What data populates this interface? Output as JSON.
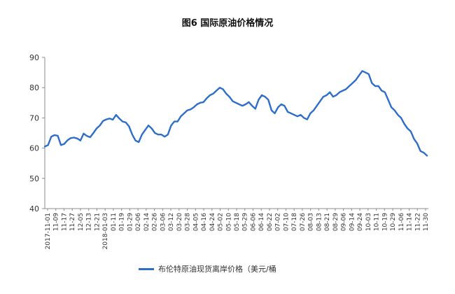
{
  "chart_data": {
    "type": "line",
    "title": "图6  国际原油价格情况",
    "xlabel": "",
    "ylabel": "",
    "ylim": [
      40,
      90
    ],
    "yticks": [
      40,
      50,
      60,
      70,
      80,
      90
    ],
    "grid": false,
    "legend_position": "bottom",
    "line_color": "#2e6ec8",
    "x_tick_labels": [
      "2017-11-01",
      "11-09",
      "11-17",
      "11-27",
      "12-05",
      "12-13",
      "12-21",
      "2018-01-03",
      "01-11",
      "01-19",
      "01-29",
      "02-06",
      "02-14",
      "02-26",
      "03-06",
      "03-12",
      "03-20",
      "03-28",
      "04-05",
      "04-16",
      "04-24",
      "05-02",
      "05-10",
      "05-18",
      "05-29",
      "06-06",
      "06-14",
      "06-22",
      "07-02",
      "07-10",
      "07-18",
      "07-26",
      "08-03",
      "08-13",
      "08-21",
      "08-29",
      "09-06",
      "09-14",
      "09-24",
      "10-03",
      "10-11",
      "10-19",
      "10-29",
      "11-06",
      "11-14",
      "11-22",
      "11-30"
    ],
    "series": [
      {
        "name": "布伦特原油现货离岸价格（美元/桶",
        "values": [
          60.5,
          61.0,
          63.8,
          64.3,
          64.1,
          61.0,
          61.4,
          62.6,
          63.3,
          63.5,
          63.2,
          62.5,
          64.8,
          64.0,
          63.6,
          65.0,
          66.5,
          67.5,
          69.0,
          69.5,
          69.8,
          69.4,
          71.0,
          69.8,
          68.8,
          68.5,
          67.2,
          64.5,
          62.5,
          62.0,
          64.5,
          66.0,
          67.5,
          66.5,
          65.0,
          64.5,
          64.5,
          63.8,
          64.5,
          67.5,
          68.8,
          68.8,
          70.5,
          71.5,
          72.5,
          72.8,
          73.5,
          74.5,
          75.0,
          75.2,
          76.5,
          77.5,
          78.0,
          79.0,
          80.0,
          79.5,
          78.0,
          77.0,
          75.5,
          75.0,
          74.5,
          74.0,
          74.5,
          75.2,
          74.0,
          73.0,
          76.0,
          77.5,
          77.0,
          76.0,
          72.5,
          71.5,
          73.5,
          74.5,
          74.0,
          72.0,
          71.5,
          71.0,
          70.5,
          71.0,
          70.0,
          69.5,
          71.5,
          72.5,
          74.0,
          75.5,
          77.0,
          77.5,
          78.5,
          77.0,
          77.5,
          78.5,
          79.0,
          79.5,
          80.5,
          81.5,
          82.5,
          84.0,
          85.5,
          85.0,
          84.5,
          81.5,
          80.5,
          80.5,
          79.0,
          78.5,
          76.0,
          73.5,
          72.5,
          71.0,
          70.0,
          68.0,
          66.5,
          65.5,
          63.0,
          61.5,
          59.0,
          58.5,
          57.5
        ]
      }
    ]
  }
}
